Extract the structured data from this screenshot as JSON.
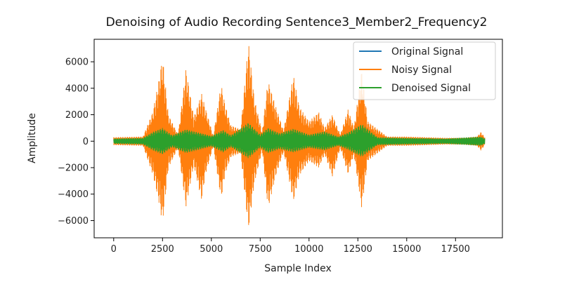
{
  "chart_data": {
    "type": "line",
    "title": "Denoising of Audio Recording Sentence3_Member2_Frequency2",
    "xlabel": "Sample Index",
    "ylabel": "Amplitude",
    "xlim": [
      -1000,
      19900
    ],
    "ylim": [
      -7300,
      7700
    ],
    "x_ticks": [
      0,
      2500,
      5000,
      7500,
      10000,
      12500,
      15000,
      17500
    ],
    "x_tick_labels": [
      "0",
      "2500",
      "5000",
      "7500",
      "10000",
      "12500",
      "15000",
      "17500"
    ],
    "y_ticks": [
      -6000,
      -4000,
      -2000,
      0,
      2000,
      4000,
      6000
    ],
    "y_tick_labels": [
      "−6000",
      "−4000",
      "−2000",
      "0",
      "2000",
      "4000",
      "6000"
    ],
    "grid": false,
    "legend_position": "top-right",
    "legend": [
      "Original Signal",
      "Noisy Signal",
      "Denoised Signal"
    ],
    "series": [
      {
        "name": "Original Signal",
        "color": "#1f77b4",
        "x": [
          0,
          2000,
          2500,
          3000,
          3700,
          4500,
          5500,
          6900,
          7900,
          9200,
          10800,
          12000,
          12700,
          15000,
          18800
        ],
        "upper": [
          80,
          150,
          600,
          120,
          500,
          200,
          400,
          700,
          500,
          500,
          400,
          300,
          550,
          100,
          120
        ],
        "lower": [
          -80,
          -150,
          -600,
          -120,
          -500,
          -200,
          -400,
          -700,
          -500,
          -500,
          -400,
          -300,
          -550,
          -100,
          -120
        ]
      },
      {
        "name": "Noisy Signal",
        "color": "#ff7f0e",
        "x": [
          0,
          1500,
          2000,
          2300,
          2500,
          2800,
          3300,
          3700,
          4100,
          4500,
          4700,
          5100,
          5500,
          5700,
          6000,
          6500,
          6900,
          7200,
          7600,
          7900,
          8300,
          8700,
          9200,
          9500,
          10000,
          10500,
          10800,
          11200,
          11600,
          12000,
          12300,
          12700,
          13000,
          14000,
          15000,
          16000,
          17000,
          18000,
          18600,
          18800,
          19000
        ],
        "upper": [
          300,
          350,
          2200,
          4500,
          6400,
          2000,
          500,
          5500,
          1800,
          3600,
          2500,
          400,
          4300,
          2800,
          1200,
          900,
          7500,
          3200,
          700,
          4600,
          2600,
          800,
          5000,
          2600,
          1500,
          2200,
          1000,
          2000,
          500,
          2400,
          1000,
          5400,
          1500,
          350,
          350,
          300,
          250,
          250,
          350,
          700,
          300
        ],
        "lower": [
          -300,
          -350,
          -2500,
          -4500,
          -6200,
          -2000,
          -500,
          -5000,
          -1800,
          -4500,
          -2500,
          -400,
          -4400,
          -2500,
          -1200,
          -900,
          -6700,
          -3200,
          -700,
          -5100,
          -2600,
          -800,
          -4600,
          -2600,
          -1500,
          -2000,
          -1000,
          -2700,
          -500,
          -2500,
          -1000,
          -5100,
          -1500,
          -350,
          -350,
          -300,
          -250,
          -250,
          -350,
          -700,
          -300
        ]
      },
      {
        "name": "Denoised Signal",
        "color": "#2ca02c",
        "x": [
          0,
          1500,
          2000,
          2500,
          3000,
          3700,
          4500,
          5000,
          5600,
          6000,
          6900,
          7500,
          7900,
          8500,
          9200,
          10000,
          10800,
          11500,
          12000,
          12700,
          13500,
          15000,
          17000,
          18800,
          19000
        ],
        "upper": [
          200,
          250,
          700,
          1000,
          450,
          900,
          600,
          400,
          850,
          450,
          1400,
          500,
          1000,
          600,
          950,
          500,
          750,
          350,
          650,
          1300,
          300,
          250,
          200,
          350,
          200
        ],
        "lower": [
          -200,
          -250,
          -700,
          -1000,
          -450,
          -900,
          -600,
          -400,
          -850,
          -450,
          -1300,
          -500,
          -900,
          -600,
          -850,
          -500,
          -700,
          -350,
          -650,
          -1200,
          -300,
          -250,
          -200,
          -350,
          -200
        ]
      }
    ]
  }
}
